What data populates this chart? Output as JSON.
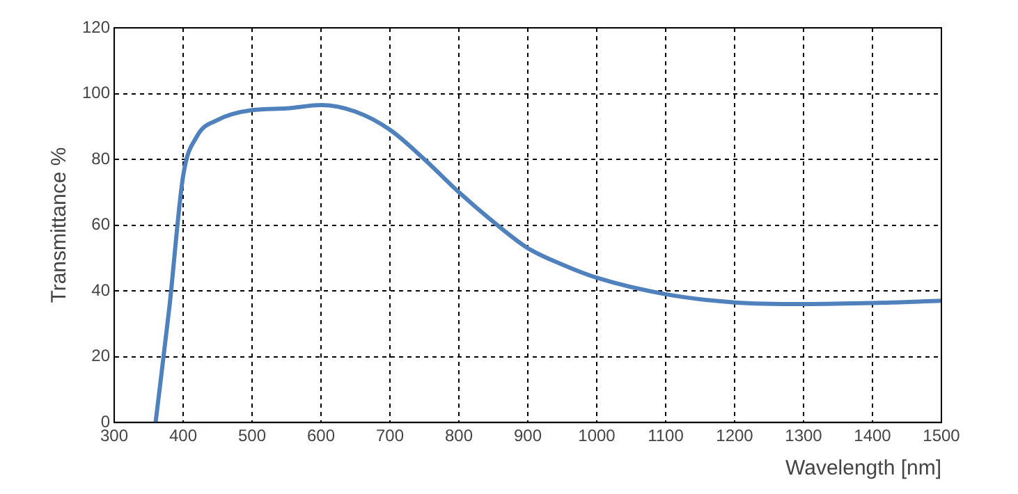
{
  "chart_data": {
    "type": "line",
    "xlabel": "Wavelength [nm]",
    "ylabel": "Transmittance %",
    "xlim": [
      300,
      1500
    ],
    "xticks": [
      300,
      400,
      500,
      600,
      700,
      800,
      900,
      1000,
      1100,
      1200,
      1300,
      1400,
      1500
    ],
    "ylim": [
      0,
      120
    ],
    "yticks": [
      0,
      20,
      40,
      60,
      80,
      100,
      120
    ],
    "grid": true,
    "legend": false,
    "marker": "none",
    "line_style": "solid",
    "series": [
      {
        "color": "#4f81bd",
        "x": [
          360,
          380,
          400,
          420,
          450,
          500,
          550,
          600,
          650,
          700,
          750,
          800,
          850,
          900,
          950,
          1000,
          1100,
          1200,
          1300,
          1400,
          1500
        ],
        "values": [
          0,
          35,
          75,
          87,
          92,
          95,
          95.5,
          96.5,
          94.5,
          89,
          80,
          70,
          61,
          53,
          48,
          44,
          39,
          36.5,
          36,
          36.3,
          37
        ]
      }
    ]
  }
}
